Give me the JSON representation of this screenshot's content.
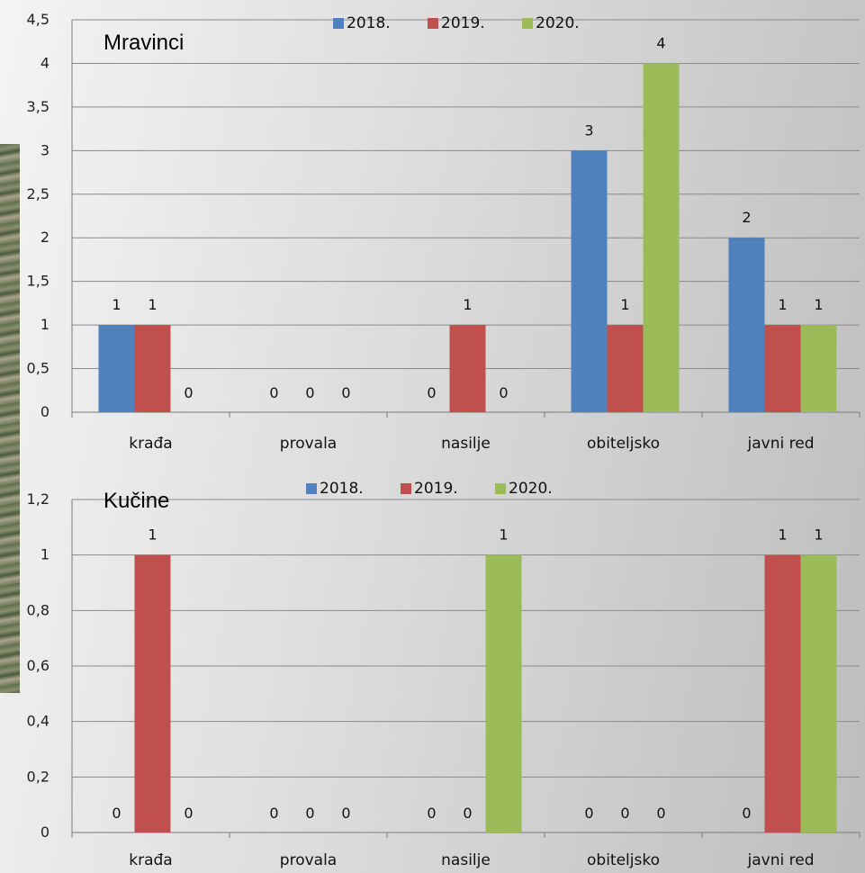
{
  "colors": {
    "2018.": "#4f81bd",
    "2019.": "#c0504d",
    "2020.": "#9bbb59"
  },
  "chart_data": [
    {
      "type": "bar",
      "title": "Mravinci",
      "categories": [
        "krađa",
        "provala",
        "nasilje",
        "obiteljsko",
        "javni red"
      ],
      "series": [
        {
          "name": "2018.",
          "values": [
            1,
            0,
            0,
            3,
            2
          ]
        },
        {
          "name": "2019.",
          "values": [
            1,
            0,
            1,
            1,
            1
          ]
        },
        {
          "name": "2020.",
          "values": [
            0,
            0,
            0,
            4,
            1
          ]
        }
      ],
      "data_labels": [
        [
          "1",
          "1",
          "0"
        ],
        [
          "0",
          "0",
          "0"
        ],
        [
          "0",
          "1",
          "0"
        ],
        [
          "3",
          "1",
          "4"
        ],
        [
          "2",
          "1",
          "1"
        ]
      ],
      "yticks": [
        "0",
        "0,5",
        "1",
        "1,5",
        "2",
        "2,5",
        "3",
        "3,5",
        "4",
        "4,5"
      ],
      "ylim": [
        0,
        4.5
      ],
      "legend": "top",
      "grid": true
    },
    {
      "type": "bar",
      "title": "Kučine",
      "categories": [
        "krađa",
        "provala",
        "nasilje",
        "obiteljsko",
        "javni red"
      ],
      "series": [
        {
          "name": "2018.",
          "values": [
            0,
            0,
            0,
            0,
            0
          ]
        },
        {
          "name": "2019.",
          "values": [
            1,
            0,
            0,
            0,
            1
          ]
        },
        {
          "name": "2020.",
          "values": [
            0,
            0,
            1,
            0,
            1
          ]
        }
      ],
      "data_labels": [
        [
          "0",
          "1",
          "0"
        ],
        [
          "0",
          "0",
          "0"
        ],
        [
          "0",
          "0",
          "1"
        ],
        [
          "0",
          "0",
          "0"
        ],
        [
          "0",
          "1",
          "1"
        ]
      ],
      "yticks": [
        "0",
        "0,2",
        "0,4",
        "0,6",
        "0,8",
        "1",
        "1,2"
      ],
      "ylim": [
        0,
        1.2
      ],
      "legend": "top",
      "grid": true
    }
  ]
}
